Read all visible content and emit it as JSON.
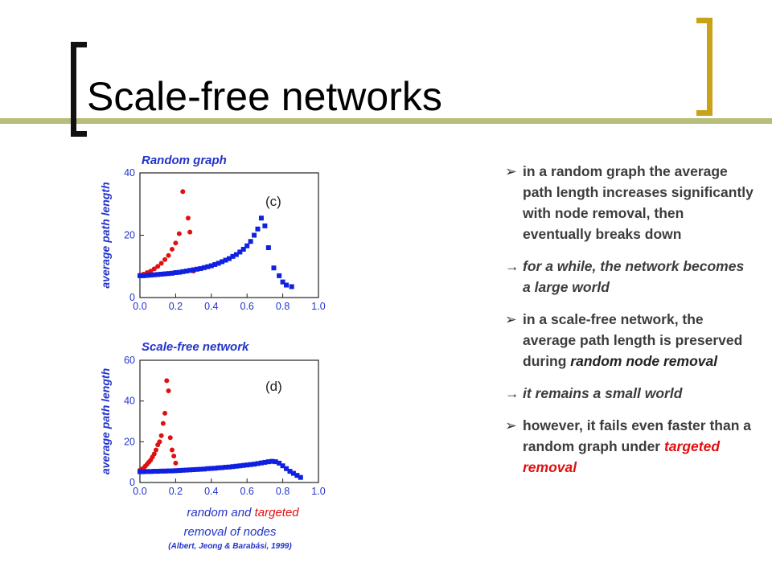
{
  "slide": {
    "title": "Scale-free networks",
    "colors": {
      "accent_line": "#b7bd7a",
      "bracket_left": "#111111",
      "bracket_right": "#c9a21a"
    }
  },
  "bullets": [
    {
      "marker": "➢",
      "text": "in a random graph the average path length increases significantly with node removal, then eventually breaks down",
      "emph": ""
    },
    {
      "marker": "→",
      "text": "for a while, the network becomes a large world",
      "emph": "",
      "note": true
    },
    {
      "marker": "➢",
      "text": "in a scale-free network, the average path length is preserved during ",
      "emph": "random node removal"
    },
    {
      "marker": "→",
      "text": "it remains a small world",
      "emph": "",
      "note": true
    },
    {
      "marker": "➢",
      "text": "however, it fails even faster than a random graph under ",
      "emph": "targeted removal"
    }
  ],
  "figure": {
    "xlabel_part1": "random and ",
    "xlabel_part2": "targeted",
    "xlabel_line2": "removal of nodes",
    "citation": "(Albert, Jeong & Barabási, 1999)"
  },
  "chart_data": [
    {
      "type": "scatter",
      "title": "Random graph",
      "panel_label": "(c)",
      "ylabel": "average path length",
      "xlabel": "",
      "xlim": [
        0.0,
        1.0
      ],
      "ylim": [
        0,
        40
      ],
      "x_ticks": [
        "0.0",
        "0.2",
        "0.4",
        "0.6",
        "0.8",
        "1.0"
      ],
      "y_ticks": [
        "0",
        "20",
        "40"
      ],
      "grid": false,
      "series": [
        {
          "color": "#e01010",
          "marker": "circle",
          "points": [
            [
              0.0,
              7.2
            ],
            [
              0.02,
              7.5
            ],
            [
              0.04,
              8.0
            ],
            [
              0.06,
              8.5
            ],
            [
              0.08,
              9.2
            ],
            [
              0.1,
              10.0
            ],
            [
              0.12,
              11.0
            ],
            [
              0.14,
              12.2
            ],
            [
              0.16,
              13.5
            ],
            [
              0.18,
              15.5
            ],
            [
              0.2,
              17.5
            ],
            [
              0.22,
              20.5
            ],
            [
              0.24,
              34.0
            ],
            [
              0.27,
              25.5
            ],
            [
              0.28,
              21.0
            ],
            [
              0.3,
              8.5
            ]
          ]
        },
        {
          "color": "#1020e0",
          "marker": "square",
          "points": [
            [
              0.0,
              7.0
            ],
            [
              0.02,
              7.0
            ],
            [
              0.04,
              7.1
            ],
            [
              0.06,
              7.2
            ],
            [
              0.08,
              7.3
            ],
            [
              0.1,
              7.4
            ],
            [
              0.12,
              7.5
            ],
            [
              0.14,
              7.6
            ],
            [
              0.16,
              7.7
            ],
            [
              0.18,
              7.8
            ],
            [
              0.2,
              8.0
            ],
            [
              0.22,
              8.1
            ],
            [
              0.24,
              8.3
            ],
            [
              0.26,
              8.5
            ],
            [
              0.28,
              8.7
            ],
            [
              0.3,
              8.9
            ],
            [
              0.32,
              9.1
            ],
            [
              0.34,
              9.3
            ],
            [
              0.36,
              9.6
            ],
            [
              0.38,
              9.9
            ],
            [
              0.4,
              10.2
            ],
            [
              0.42,
              10.6
            ],
            [
              0.44,
              11.0
            ],
            [
              0.46,
              11.5
            ],
            [
              0.48,
              12.0
            ],
            [
              0.5,
              12.5
            ],
            [
              0.52,
              13.2
            ],
            [
              0.54,
              13.8
            ],
            [
              0.56,
              14.6
            ],
            [
              0.58,
              15.5
            ],
            [
              0.6,
              16.6
            ],
            [
              0.62,
              18.0
            ],
            [
              0.64,
              20.0
            ],
            [
              0.66,
              22.0
            ],
            [
              0.68,
              25.5
            ],
            [
              0.7,
              23.0
            ],
            [
              0.72,
              16.0
            ],
            [
              0.75,
              9.5
            ],
            [
              0.78,
              7.0
            ],
            [
              0.8,
              5.0
            ],
            [
              0.82,
              4.0
            ],
            [
              0.85,
              3.5
            ]
          ]
        }
      ]
    },
    {
      "type": "scatter",
      "title": "Scale-free network",
      "panel_label": "(d)",
      "ylabel": "average path length",
      "xlabel": "",
      "xlim": [
        0.0,
        1.0
      ],
      "ylim": [
        0,
        60
      ],
      "x_ticks": [
        "0.0",
        "0.2",
        "0.4",
        "0.6",
        "0.8",
        "1.0"
      ],
      "y_ticks": [
        "0",
        "20",
        "40",
        "60"
      ],
      "grid": false,
      "series": [
        {
          "color": "#e01010",
          "marker": "circle",
          "points": [
            [
              0.0,
              6.0
            ],
            [
              0.01,
              6.5
            ],
            [
              0.02,
              7.0
            ],
            [
              0.03,
              8.0
            ],
            [
              0.04,
              9.0
            ],
            [
              0.05,
              10.0
            ],
            [
              0.06,
              11.0
            ],
            [
              0.07,
              12.5
            ],
            [
              0.08,
              14.0
            ],
            [
              0.09,
              16.0
            ],
            [
              0.1,
              18.5
            ],
            [
              0.11,
              20.0
            ],
            [
              0.12,
              23.0
            ],
            [
              0.13,
              29.0
            ],
            [
              0.14,
              34.0
            ],
            [
              0.15,
              50.0
            ],
            [
              0.16,
              45.0
            ],
            [
              0.17,
              22.0
            ],
            [
              0.18,
              16.0
            ],
            [
              0.19,
              13.0
            ],
            [
              0.2,
              9.5
            ]
          ]
        },
        {
          "color": "#1020e0",
          "marker": "square",
          "points": [
            [
              0.0,
              5.3
            ],
            [
              0.02,
              5.3
            ],
            [
              0.04,
              5.4
            ],
            [
              0.06,
              5.4
            ],
            [
              0.08,
              5.5
            ],
            [
              0.1,
              5.5
            ],
            [
              0.12,
              5.6
            ],
            [
              0.14,
              5.6
            ],
            [
              0.16,
              5.7
            ],
            [
              0.18,
              5.7
            ],
            [
              0.2,
              5.8
            ],
            [
              0.22,
              5.9
            ],
            [
              0.24,
              6.0
            ],
            [
              0.26,
              6.1
            ],
            [
              0.28,
              6.2
            ],
            [
              0.3,
              6.3
            ],
            [
              0.32,
              6.4
            ],
            [
              0.34,
              6.5
            ],
            [
              0.36,
              6.6
            ],
            [
              0.38,
              6.8
            ],
            [
              0.4,
              6.9
            ],
            [
              0.42,
              7.0
            ],
            [
              0.44,
              7.2
            ],
            [
              0.46,
              7.3
            ],
            [
              0.48,
              7.5
            ],
            [
              0.5,
              7.6
            ],
            [
              0.52,
              7.8
            ],
            [
              0.54,
              8.0
            ],
            [
              0.56,
              8.2
            ],
            [
              0.58,
              8.4
            ],
            [
              0.6,
              8.6
            ],
            [
              0.62,
              8.8
            ],
            [
              0.64,
              9.0
            ],
            [
              0.66,
              9.3
            ],
            [
              0.68,
              9.6
            ],
            [
              0.7,
              9.9
            ],
            [
              0.72,
              10.2
            ],
            [
              0.74,
              10.4
            ],
            [
              0.76,
              10.2
            ],
            [
              0.78,
              9.5
            ],
            [
              0.8,
              8.2
            ],
            [
              0.82,
              6.8
            ],
            [
              0.84,
              5.5
            ],
            [
              0.86,
              4.5
            ],
            [
              0.88,
              3.5
            ],
            [
              0.9,
              2.5
            ]
          ]
        }
      ]
    }
  ]
}
